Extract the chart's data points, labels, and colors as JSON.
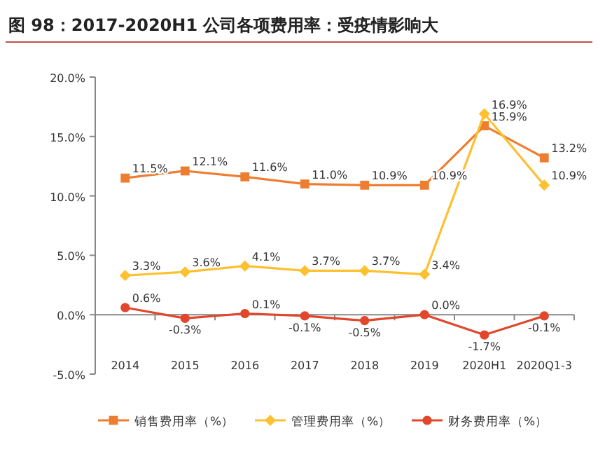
{
  "chart_data": {
    "type": "line",
    "title": "图 98：2017-2020H1 公司各项费用率：受疫情影响大",
    "categories": [
      "2014",
      "2015",
      "2016",
      "2017",
      "2018",
      "2019",
      "2020H1",
      "2020Q1-3"
    ],
    "ylim": [
      -5,
      20
    ],
    "yticks": [
      {
        "value": -5,
        "label": "-5.0%"
      },
      {
        "value": 0,
        "label": "0.0%"
      },
      {
        "value": 5,
        "label": "5.0%"
      },
      {
        "value": 10,
        "label": "10.0%"
      },
      {
        "value": 15,
        "label": "15.0%"
      },
      {
        "value": 20,
        "label": "20.0%"
      }
    ],
    "legend": "bottom",
    "series": [
      {
        "name": "销售费用率（%）",
        "color": "#ed7d31",
        "marker": "square",
        "values": [
          11.5,
          12.1,
          11.6,
          11.0,
          10.9,
          10.9,
          15.9,
          13.2
        ],
        "value_labels": [
          "11.5%",
          "12.1%",
          "11.6%",
          "11.0%",
          "10.9%",
          "10.9%",
          "15.9%",
          "13.2%"
        ]
      },
      {
        "name": "管理费用率（%）",
        "color": "#fdc02f",
        "marker": "diamond",
        "values": [
          3.3,
          3.6,
          4.1,
          3.7,
          3.7,
          3.4,
          16.9,
          10.9
        ],
        "value_labels": [
          "3.3%",
          "3.6%",
          "4.1%",
          "3.7%",
          "3.7%",
          "3.4%",
          "16.9%",
          "10.9%"
        ]
      },
      {
        "name": "财务费用率（%）",
        "color": "#e2462b",
        "marker": "circle",
        "values": [
          0.6,
          -0.3,
          0.1,
          -0.1,
          -0.5,
          0.0,
          -1.7,
          -0.1
        ],
        "value_labels": [
          "0.6%",
          "-0.3%",
          "0.1%",
          "-0.1%",
          "-0.5%",
          "0.0%",
          "-1.7%",
          "-0.1%"
        ]
      }
    ]
  }
}
